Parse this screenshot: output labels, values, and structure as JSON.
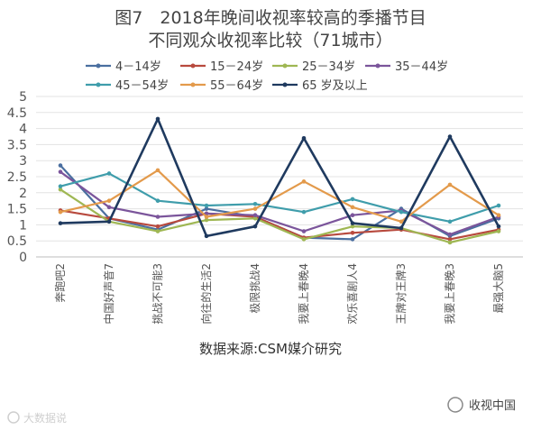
{
  "chart_data": {
    "type": "line",
    "title_line1": "图7　2018年晚间收视率较高的季播节目",
    "title_line2": "不同观众收视率比较（71城市）",
    "categories": [
      "奔跑吧2",
      "中国好声音7",
      "挑战不可能3",
      "向往的生活2",
      "极限挑战4",
      "我要上春晚4",
      "欢乐喜剧人4",
      "王牌对王牌3",
      "我要上春晚3",
      "最强大脑5"
    ],
    "yticks": [
      "0",
      "0.5",
      "1",
      "1.5",
      "2",
      "2.5",
      "3",
      "3.5",
      "4",
      "4.5",
      "5"
    ],
    "ylim": [
      0,
      5
    ],
    "xlabel": "",
    "ylabel": "",
    "series": [
      {
        "name": "4－14岁",
        "color": "#4a6fa0",
        "values": [
          2.85,
          1.2,
          0.85,
          1.5,
          1.25,
          0.6,
          0.55,
          1.5,
          0.65,
          1.2
        ]
      },
      {
        "name": "15－24岁",
        "color": "#b84a3e",
        "values": [
          1.45,
          1.2,
          0.95,
          1.35,
          1.25,
          0.6,
          0.75,
          0.85,
          0.55,
          0.85
        ]
      },
      {
        "name": "25－34岁",
        "color": "#9fb753",
        "values": [
          2.1,
          1.1,
          0.8,
          1.15,
          1.2,
          0.55,
          0.95,
          0.9,
          0.45,
          0.8
        ]
      },
      {
        "name": "35－44岁",
        "color": "#7b559b",
        "values": [
          2.65,
          1.55,
          1.25,
          1.35,
          1.3,
          0.8,
          1.3,
          1.45,
          0.7,
          1.25
        ]
      },
      {
        "name": "45－54岁",
        "color": "#3f9dab",
        "values": [
          2.2,
          2.6,
          1.75,
          1.6,
          1.65,
          1.4,
          1.8,
          1.4,
          1.1,
          1.6
        ]
      },
      {
        "name": "55－64岁",
        "color": "#e39a4b",
        "values": [
          1.4,
          1.75,
          2.7,
          1.25,
          1.5,
          2.35,
          1.55,
          1.1,
          2.25,
          1.3
        ]
      },
      {
        "name": "65 岁及以上",
        "color": "#1f3a5f",
        "values": [
          1.05,
          1.1,
          4.3,
          0.65,
          0.95,
          3.7,
          1.05,
          0.9,
          3.75,
          0.95
        ]
      }
    ]
  },
  "source": "数据来源:CSM媒介研究",
  "watermark_left": "大数据说",
  "watermark_right": "收视中国"
}
